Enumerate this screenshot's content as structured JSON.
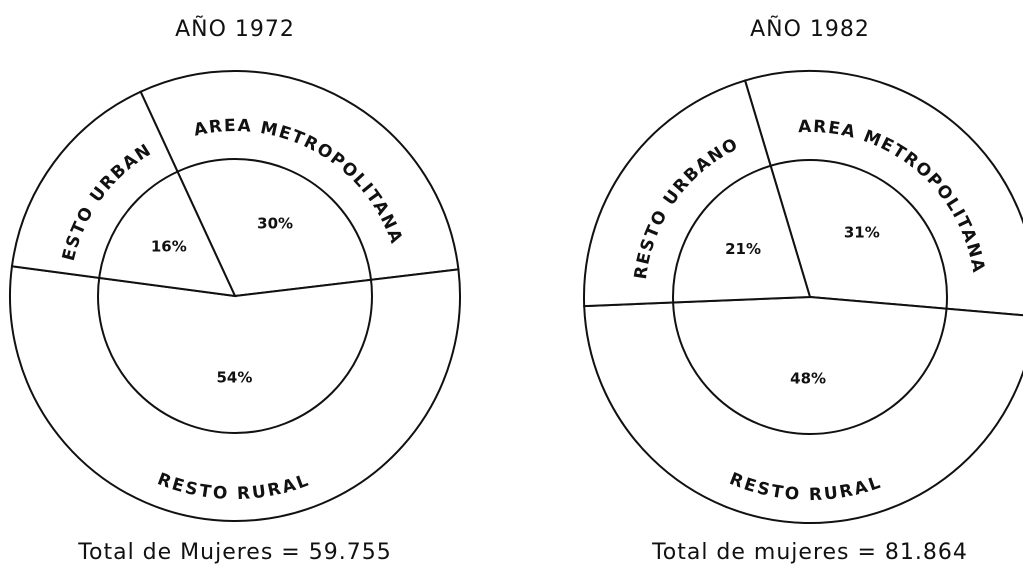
{
  "chart_data": [
    {
      "type": "pie",
      "title": "AÑO 1972",
      "categories": [
        "AREA METROPOLITANA",
        "RESTO RURAL",
        "RESTO URBANO"
      ],
      "values": [
        30,
        54,
        16
      ],
      "value_labels": [
        "30%",
        "54%",
        "16%"
      ],
      "caption": "Total de Mujeres = 59.755",
      "color": "#ffffff"
    },
    {
      "type": "pie",
      "title": "AÑO 1982",
      "categories": [
        "AREA METROPOLITANA",
        "RESTO RURAL",
        "RESTO URBANO"
      ],
      "values": [
        31,
        48,
        21
      ],
      "value_labels": [
        "31%",
        "48%",
        "21%"
      ],
      "caption": "Total de mujeres = 81.864",
      "color": "#ffffff"
    }
  ]
}
